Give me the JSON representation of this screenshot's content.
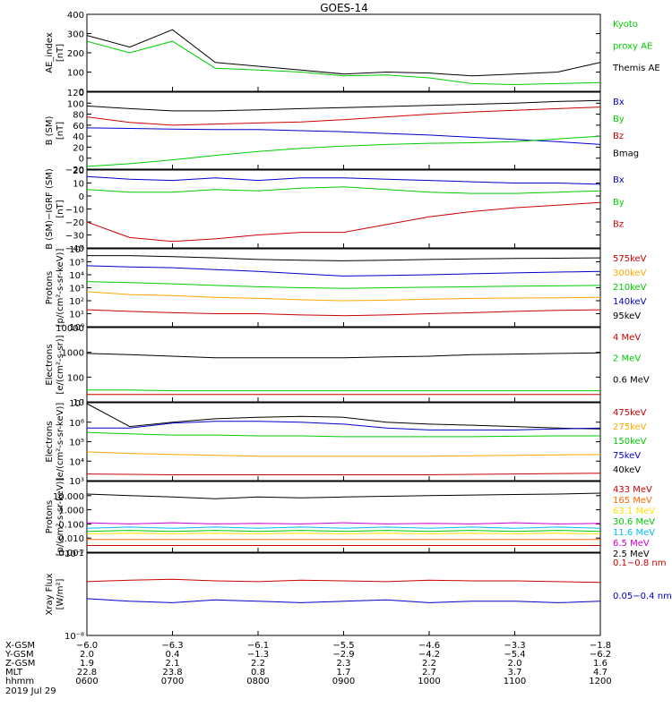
{
  "title": "GOES-14",
  "panels": [
    {
      "id": "ae",
      "ylabel": [
        "AE_index",
        "[nT]"
      ],
      "yscale": "linear",
      "ylim": [
        0,
        400
      ],
      "yticks": [
        0,
        100,
        200,
        300,
        400
      ],
      "ytick_labels": [
        "0",
        "100",
        "200",
        "300",
        "400"
      ],
      "legend": [
        {
          "text": "Kyoto",
          "color": "#00cc00"
        },
        {
          "text": "proxy AE",
          "color": "#00cc00"
        },
        {
          "text": "Themis AE",
          "color": "#000000"
        }
      ]
    },
    {
      "id": "bsm",
      "ylabel": [
        "B (SM)",
        "[nT]"
      ],
      "yscale": "linear",
      "ylim": [
        -20,
        120
      ],
      "yticks": [
        -20,
        0,
        20,
        40,
        60,
        80,
        100,
        120
      ],
      "ytick_labels": [
        "−20",
        "0",
        "20",
        "40",
        "60",
        "80",
        "100",
        "120"
      ],
      "legend": [
        {
          "text": "Bx",
          "color": "#0000cc"
        },
        {
          "text": "By",
          "color": "#00cc00"
        },
        {
          "text": "Bz",
          "color": "#cc0000"
        },
        {
          "text": "Bmag",
          "color": "#000000"
        }
      ]
    },
    {
      "id": "bigrf",
      "ylabel": [
        "B (SM)−IGRF (SM)",
        "[nT]"
      ],
      "yscale": "linear",
      "ylim": [
        -40,
        20
      ],
      "yticks": [
        -40,
        -30,
        -20,
        -10,
        0,
        10,
        20
      ],
      "ytick_labels": [
        "−40",
        "−30",
        "−20",
        "−10",
        "0",
        "10",
        "20"
      ],
      "legend": [
        {
          "text": "Bx",
          "color": "#0000cc"
        },
        {
          "text": "By",
          "color": "#00cc00"
        },
        {
          "text": "Bz",
          "color": "#cc0000"
        }
      ]
    },
    {
      "id": "protons",
      "ylabel": [
        "Protons",
        "[p/(cm²-s-sr-keV)]"
      ],
      "yscale": "log",
      "ylim": [
        1,
        1000000
      ],
      "yticks": [
        1,
        10,
        100,
        1000,
        10000,
        100000,
        1000000
      ],
      "ytick_labels": [
        "10⁰",
        "10¹",
        "10²",
        "10³",
        "10⁴",
        "10⁵",
        "10⁶"
      ],
      "legend": [
        {
          "text": "575keV",
          "color": "#cc0000"
        },
        {
          "text": "300keV",
          "color": "#ffaa00"
        },
        {
          "text": "210keV",
          "color": "#00cc00"
        },
        {
          "text": "140keV",
          "color": "#0000cc"
        },
        {
          "text": "95keV",
          "color": "#000000"
        }
      ]
    },
    {
      "id": "electrons_mev",
      "ylabel": [
        "Electrons",
        "[e/(cm²-s-sr)]"
      ],
      "yscale": "log",
      "ylim": [
        10,
        10000
      ],
      "yticks": [
        10,
        100,
        1000,
        10000
      ],
      "ytick_labels": [
        "10",
        "100",
        "1000",
        "10000"
      ],
      "legend": [
        {
          "text": "4 MeV",
          "color": "#cc0000"
        },
        {
          "text": "2 MeV",
          "color": "#00cc00"
        },
        {
          "text": "0.6 MeV",
          "color": "#000000"
        }
      ]
    },
    {
      "id": "electrons_kev",
      "ylabel": [
        "Electrons",
        "[e/(cm²-s-sr-keV)]"
      ],
      "yscale": "log",
      "ylim": [
        1000,
        10000000
      ],
      "yticks": [
        1000,
        10000,
        100000,
        1000000,
        10000000
      ],
      "ytick_labels": [
        "10³",
        "10⁴",
        "10⁵",
        "10⁶",
        "10⁷"
      ],
      "legend": [
        {
          "text": "475keV",
          "color": "#cc0000"
        },
        {
          "text": "275keV",
          "color": "#ffaa00"
        },
        {
          "text": "150keV",
          "color": "#00cc00"
        },
        {
          "text": "75keV",
          "color": "#0000cc"
        },
        {
          "text": "40keV",
          "color": "#000000"
        }
      ]
    },
    {
      "id": "protons_mev",
      "ylabel": [
        "Protons",
        "[p/(cm²-s-sr-keV)]"
      ],
      "yscale": "log",
      "ylim": [
        0.001,
        100
      ],
      "yticks": [
        0.001,
        0.01,
        0.1,
        1,
        10
      ],
      "ytick_labels": [
        "0.001",
        "0.010",
        "0.100",
        "1.000",
        "10.000"
      ],
      "legend": [
        {
          "text": "433 MeV",
          "color": "#cc0000"
        },
        {
          "text": "165 MeV",
          "color": "#ff6600"
        },
        {
          "text": "63.1 MeV",
          "color": "#ffdd00"
        },
        {
          "text": "30.6 MeV",
          "color": "#00cc00"
        },
        {
          "text": "11.6 MeV",
          "color": "#00bbff"
        },
        {
          "text": "6.5 MeV",
          "color": "#cc00cc"
        },
        {
          "text": "2.5 MeV",
          "color": "#000000"
        }
      ]
    },
    {
      "id": "xray",
      "ylabel": [
        "Xray Flux",
        "[W/m²]"
      ],
      "yscale": "log",
      "ylim": [
        1e-08,
        1e-07
      ],
      "yticks": [
        1e-08,
        1e-07
      ],
      "ytick_labels": [
        "10⁻⁸",
        "10⁻⁷"
      ],
      "legend": [
        {
          "text": "0.1−0.8 nm",
          "color": "#cc0000"
        },
        {
          "text": "0.05−0.4 nm",
          "color": "#0000cc"
        }
      ]
    }
  ],
  "xaxis": {
    "rows": [
      {
        "label": "X-GSM",
        "values": [
          "−6.0",
          "−6.3",
          "−6.1",
          "−5.5",
          "−4.6",
          "−3.3",
          "−1.8"
        ]
      },
      {
        "label": "Y-GSM",
        "values": [
          "2.0",
          "0.4",
          "−1.3",
          "−2.9",
          "−4.2",
          "−5.4",
          "−6.2"
        ]
      },
      {
        "label": "Z-GSM",
        "values": [
          "1.9",
          "2.1",
          "2.2",
          "2.3",
          "2.2",
          "2.0",
          "1.6"
        ]
      },
      {
        "label": "MLT",
        "values": [
          "22.8",
          "23.8",
          "0.8",
          "1.7",
          "2.7",
          "3.7",
          "4.7"
        ]
      },
      {
        "label": "hhmm",
        "values": [
          "0600",
          "0700",
          "0800",
          "0900",
          "1000",
          "1100",
          "1200"
        ]
      }
    ],
    "date": "2019 Jul 29"
  },
  "chart_data": {
    "type": "line",
    "title": "GOES-14",
    "x_unit": "hhmm UT, 2019 Jul 29",
    "x": [
      6.0,
      6.5,
      7.0,
      7.5,
      8.0,
      8.5,
      9.0,
      9.5,
      10.0,
      10.5,
      11.0,
      11.5,
      12.0
    ],
    "panels": [
      {
        "id": "ae",
        "series": [
          {
            "name": "Themis AE",
            "color": "#000000",
            "values": [
              290,
              230,
              320,
              150,
              130,
              110,
              90,
              100,
              95,
              80,
              90,
              100,
              150
            ]
          },
          {
            "name": "Kyoto proxy AE",
            "color": "#00cc00",
            "values": [
              260,
              200,
              260,
              120,
              110,
              100,
              80,
              85,
              70,
              40,
              35,
              40,
              45
            ]
          }
        ]
      },
      {
        "id": "bsm",
        "series": [
          {
            "name": "Bmag",
            "color": "#000000",
            "values": [
              95,
              90,
              86,
              86,
              88,
              90,
              92,
              94,
              96,
              98,
              100,
              103,
              105
            ]
          },
          {
            "name": "Bz",
            "color": "#cc0000",
            "values": [
              75,
              65,
              60,
              62,
              64,
              66,
              70,
              75,
              80,
              84,
              87,
              90,
              93
            ]
          },
          {
            "name": "Bx",
            "color": "#0000cc",
            "values": [
              55,
              54,
              53,
              52,
              52,
              50,
              48,
              45,
              42,
              38,
              34,
              30,
              25
            ]
          },
          {
            "name": "By",
            "color": "#00cc00",
            "values": [
              -15,
              -10,
              -3,
              5,
              12,
              18,
              22,
              25,
              27,
              28,
              30,
              35,
              40
            ]
          }
        ]
      },
      {
        "id": "bigrf",
        "series": [
          {
            "name": "Bx",
            "color": "#0000cc",
            "values": [
              15,
              13,
              12,
              14,
              12,
              14,
              14,
              13,
              12,
              11,
              10,
              10,
              9
            ]
          },
          {
            "name": "By",
            "color": "#00cc00",
            "values": [
              5,
              3,
              3,
              5,
              4,
              6,
              7,
              5,
              3,
              2,
              2,
              3,
              4
            ]
          },
          {
            "name": "Bz",
            "color": "#cc0000",
            "values": [
              -20,
              -32,
              -35,
              -33,
              -30,
              -28,
              -28,
              -22,
              -16,
              -12,
              -9,
              -7,
              -5
            ]
          }
        ]
      },
      {
        "id": "protons",
        "series": [
          {
            "name": "95keV",
            "color": "#000000",
            "values": [
              300000,
              300000,
              250000,
              200000,
              150000,
              130000,
              120000,
              130000,
              150000,
              170000,
              180000,
              190000,
              200000
            ]
          },
          {
            "name": "140keV",
            "color": "#0000cc",
            "values": [
              50000,
              40000,
              35000,
              25000,
              18000,
              12000,
              8000,
              9000,
              10000,
              12000,
              14000,
              16000,
              18000
            ]
          },
          {
            "name": "210keV",
            "color": "#00cc00",
            "values": [
              3000,
              2500,
              2000,
              1500,
              1200,
              1000,
              900,
              1000,
              1100,
              1200,
              1300,
              1400,
              1500
            ]
          },
          {
            "name": "300keV",
            "color": "#ffaa00",
            "values": [
              500,
              300,
              250,
              180,
              150,
              120,
              100,
              110,
              130,
              150,
              160,
              170,
              180
            ]
          },
          {
            "name": "575keV",
            "color": "#cc0000",
            "values": [
              20,
              15,
              12,
              10,
              10,
              8,
              7,
              8,
              10,
              12,
              15,
              18,
              20
            ]
          }
        ]
      },
      {
        "id": "electrons_mev",
        "series": [
          {
            "name": "0.6 MeV",
            "color": "#000000",
            "values": [
              900,
              800,
              700,
              600,
              600,
              600,
              600,
              650,
              700,
              800,
              850,
              900,
              950
            ]
          },
          {
            "name": "2 MeV",
            "color": "#00cc00",
            "values": [
              30,
              30,
              28,
              28,
              28,
              28,
              28,
              28,
              28,
              28,
              28,
              28,
              28
            ]
          },
          {
            "name": "4 MeV",
            "color": "#cc0000",
            "values": [
              20,
              20,
              20,
              20,
              20,
              20,
              20,
              20,
              20,
              20,
              20,
              20,
              20
            ]
          }
        ]
      },
      {
        "id": "electrons_kev",
        "series": [
          {
            "name": "40keV",
            "color": "#000000",
            "values": [
              9000000,
              600000,
              1000000,
              1500000,
              1800000,
              2000000,
              1800000,
              1000000,
              800000,
              700000,
              600000,
              500000,
              450000
            ]
          },
          {
            "name": "75keV",
            "color": "#0000cc",
            "values": [
              500000,
              500000,
              900000,
              1100000,
              1100000,
              1000000,
              800000,
              500000,
              400000,
              400000,
              400000,
              450000,
              500000
            ]
          },
          {
            "name": "150keV",
            "color": "#00cc00",
            "values": [
              300000,
              250000,
              220000,
              220000,
              200000,
              200000,
              180000,
              180000,
              180000,
              180000,
              190000,
              200000,
              200000
            ]
          },
          {
            "name": "275keV",
            "color": "#ffaa00",
            "values": [
              30000,
              25000,
              22000,
              20000,
              18000,
              18000,
              18000,
              18000,
              18000,
              19000,
              20000,
              21000,
              22000
            ]
          },
          {
            "name": "475keV",
            "color": "#cc0000",
            "values": [
              2200,
              2100,
              2000,
              2000,
              2000,
              2000,
              2000,
              2000,
              2000,
              2100,
              2200,
              2300,
              2400
            ]
          }
        ]
      },
      {
        "id": "protons_mev",
        "series": [
          {
            "name": "2.5 MeV",
            "color": "#000000",
            "values": [
              13,
              10,
              8,
              6,
              8,
              7,
              8,
              9,
              10,
              11,
              12,
              13,
              15
            ]
          },
          {
            "name": "6.5 MeV",
            "color": "#cc00cc",
            "values": [
              0.12,
              0.1,
              0.12,
              0.1,
              0.11,
              0.1,
              0.12,
              0.1,
              0.11,
              0.1,
              0.12,
              0.1,
              0.11
            ]
          },
          {
            "name": "11.6 MeV",
            "color": "#00bbff",
            "values": [
              0.05,
              0.06,
              0.05,
              0.06,
              0.05,
              0.06,
              0.05,
              0.06,
              0.05,
              0.06,
              0.05,
              0.06,
              0.05
            ]
          },
          {
            "name": "30.6 MeV",
            "color": "#00cc00",
            "values": [
              0.03,
              0.035,
              0.03,
              0.035,
              0.03,
              0.035,
              0.03,
              0.035,
              0.03,
              0.035,
              0.03,
              0.035,
              0.03
            ]
          },
          {
            "name": "63.1 MeV",
            "color": "#ffdd00",
            "values": [
              0.02,
              0.022,
              0.02,
              0.022,
              0.02,
              0.022,
              0.02,
              0.022,
              0.02,
              0.022,
              0.02,
              0.022,
              0.02
            ]
          },
          {
            "name": "165 MeV",
            "color": "#ff6600",
            "values": [
              0.008,
              0.008,
              0.008,
              0.008,
              0.008,
              0.008,
              0.008,
              0.008,
              0.008,
              0.008,
              0.008,
              0.008,
              0.008
            ]
          },
          {
            "name": "433 MeV",
            "color": "#cc0000",
            "values": [
              0.003,
              0.003,
              0.003,
              0.003,
              0.003,
              0.003,
              0.003,
              0.003,
              0.003,
              0.003,
              0.003,
              0.003,
              0.003
            ]
          }
        ]
      },
      {
        "id": "xray",
        "series": [
          {
            "name": "0.1−0.8 nm",
            "color": "#cc0000",
            "values": [
              4.5e-08,
              4.7e-08,
              4.8e-08,
              4.6e-08,
              4.5e-08,
              4.7e-08,
              4.6e-08,
              4.5e-08,
              4.7e-08,
              4.6e-08,
              4.6e-08,
              4.5e-08,
              4.4e-08
            ]
          },
          {
            "name": "0.05−0.4 nm",
            "color": "#0000cc",
            "values": [
              2.8e-08,
              2.6e-08,
              2.5e-08,
              2.7e-08,
              2.6e-08,
              2.5e-08,
              2.6e-08,
              2.7e-08,
              2.5e-08,
              2.6e-08,
              2.6e-08,
              2.5e-08,
              2.6e-08
            ]
          }
        ]
      }
    ]
  }
}
